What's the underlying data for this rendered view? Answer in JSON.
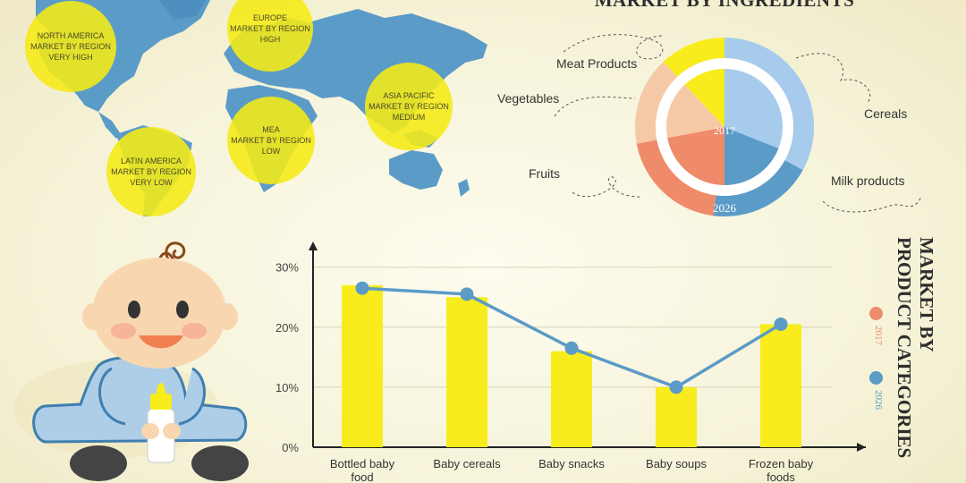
{
  "colors": {
    "y2017": "#ef8a6a",
    "y2026": "#5b9bc8",
    "bar": "#f8ec1c",
    "line": "#5b9bc8",
    "map": "#5b9bc8",
    "region": "#f5eb14"
  },
  "regions": [
    {
      "name": "NORTH AMERICA",
      "sub": "MARKET BY REGION",
      "level": "VERY HIGH"
    },
    {
      "name": "EUROPE",
      "sub": "MARKET BY REGION",
      "level": "HIGH"
    },
    {
      "name": "ASIA PACIFIC",
      "sub": "MARKET BY REGION",
      "level": "MEDIUM"
    },
    {
      "name": "MEA",
      "sub": "MARKET BY REGION",
      "level": "LOW"
    },
    {
      "name": "LATIN AMERICA",
      "sub": "MARKET BY REGION",
      "level": "VERY LOW"
    }
  ],
  "ingredients": {
    "title": "MARKET BY INGREDIENTS",
    "labels": [
      "Meat Products",
      "Vegetables",
      "Fruits",
      "Cereals",
      "Milk products"
    ],
    "year_inner": "2017",
    "year_outer": "2026"
  },
  "chart_data": [
    {
      "type": "pie",
      "title": "MARKET BY INGREDIENTS",
      "series": [
        {
          "name": "2017",
          "labels": [
            "Cereals",
            "Milk products",
            "Fruits",
            "Vegetables",
            "Meat Products"
          ],
          "values": [
            31,
            19,
            22,
            16,
            12
          ]
        },
        {
          "name": "2026",
          "labels": [
            "Cereals",
            "Milk products",
            "Fruits",
            "Vegetables",
            "Meat Products"
          ],
          "values": [
            33,
            19,
            20,
            16,
            12
          ]
        }
      ]
    },
    {
      "type": "bar",
      "title": "MARKET BY PRODUCT CATEGORIES",
      "categories": [
        "Bottled baby food",
        "Baby cereals",
        "Baby snacks",
        "Baby soups",
        "Frozen baby foods"
      ],
      "series": [
        {
          "name": "2017",
          "values": [
            27,
            25,
            16,
            10,
            20.5
          ]
        },
        {
          "name": "2026",
          "values": [
            26.5,
            25.5,
            16.5,
            10,
            20.5
          ]
        }
      ],
      "yticks": [
        "0%",
        "10%",
        "20%",
        "30%"
      ],
      "ylim": [
        0,
        31
      ],
      "legend": [
        "2017",
        "2026"
      ],
      "legend_position": "right",
      "grid": true
    }
  ],
  "categories_title": {
    "line1": "MARKET BY",
    "line2": "PRODUCT CATEGORIES"
  },
  "xtick_lines": [
    [
      "Bottled baby",
      "food"
    ],
    [
      "Baby cereals"
    ],
    [
      "Baby snacks"
    ],
    [
      "Baby soups"
    ],
    [
      "Frozen baby",
      "foods"
    ]
  ]
}
